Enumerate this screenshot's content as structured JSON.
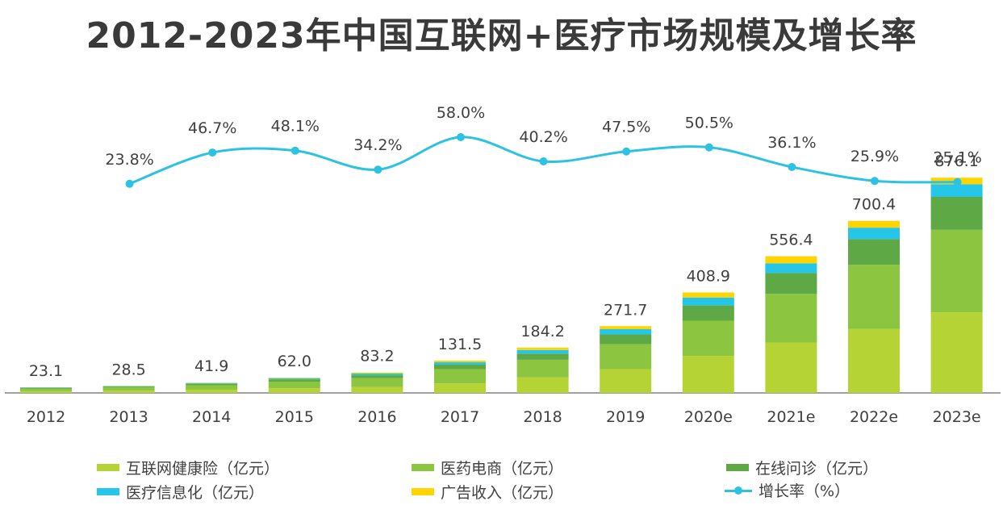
{
  "title": "2012-2023年中国互联网+医疗市场规模及增长率",
  "chart_data": {
    "type": "bar",
    "stacked": true,
    "categories": [
      "2012",
      "2013",
      "2014",
      "2015",
      "2016",
      "2017",
      "2018",
      "2019",
      "2020e",
      "2021e",
      "2022e",
      "2023e"
    ],
    "totals": [
      23.1,
      28.5,
      41.9,
      62.0,
      83.2,
      131.5,
      184.2,
      271.7,
      408.9,
      556.4,
      700.4,
      876.1
    ],
    "total_labels": [
      "23.1",
      "28.5",
      "41.9",
      "62.0",
      "83.2",
      "131.5",
      "184.2",
      "271.7",
      "408.9",
      "556.4",
      "700.4",
      "876.1"
    ],
    "ylim": [
      0,
      1000
    ],
    "series": [
      {
        "name": "互联网健康险（亿元）",
        "color": "#b5d334",
        "values": [
          7,
          9,
          13,
          19,
          24,
          39,
          63,
          97,
          150,
          205,
          260,
          328
        ]
      },
      {
        "name": "医药电商（亿元）",
        "color": "#8cc540",
        "values": [
          10,
          13,
          18,
          27,
          36,
          58,
          72,
          101,
          144,
          198,
          262,
          336
        ]
      },
      {
        "name": "在线问诊（亿元）",
        "color": "#5ea845",
        "values": [
          4,
          4,
          6,
          9,
          12,
          18,
          25,
          40,
          62,
          85,
          104,
          134
        ]
      },
      {
        "name": "医疗信息化（亿元）",
        "color": "#26c6e8",
        "values": [
          1.5,
          1.5,
          3.1,
          4.6,
          6.8,
          9.9,
          14.5,
          21.5,
          32.3,
          39.6,
          46.7,
          51.5
        ]
      },
      {
        "name": "广告收入（亿元）",
        "color": "#ffd400",
        "values": [
          0.6,
          1.0,
          1.8,
          2.4,
          4.4,
          6.6,
          9.7,
          12.2,
          20.6,
          28.8,
          27.7,
          26.6
        ]
      }
    ],
    "growth_series": {
      "name": "增长率（%）",
      "color": "#2ec2e2",
      "categories": [
        "2013",
        "2014",
        "2015",
        "2016",
        "2017",
        "2018",
        "2019",
        "2020e",
        "2021e",
        "2022e",
        "2023e"
      ],
      "values": [
        23.8,
        46.7,
        48.1,
        34.2,
        58.0,
        40.2,
        47.5,
        50.5,
        36.1,
        25.9,
        25.1
      ],
      "labels": [
        "23.8%",
        "46.7%",
        "48.1%",
        "34.2%",
        "58.0%",
        "40.2%",
        "47.5%",
        "50.5%",
        "36.1%",
        "25.9%",
        "25.1%"
      ]
    },
    "legend_position": "bottom",
    "grid": false
  }
}
